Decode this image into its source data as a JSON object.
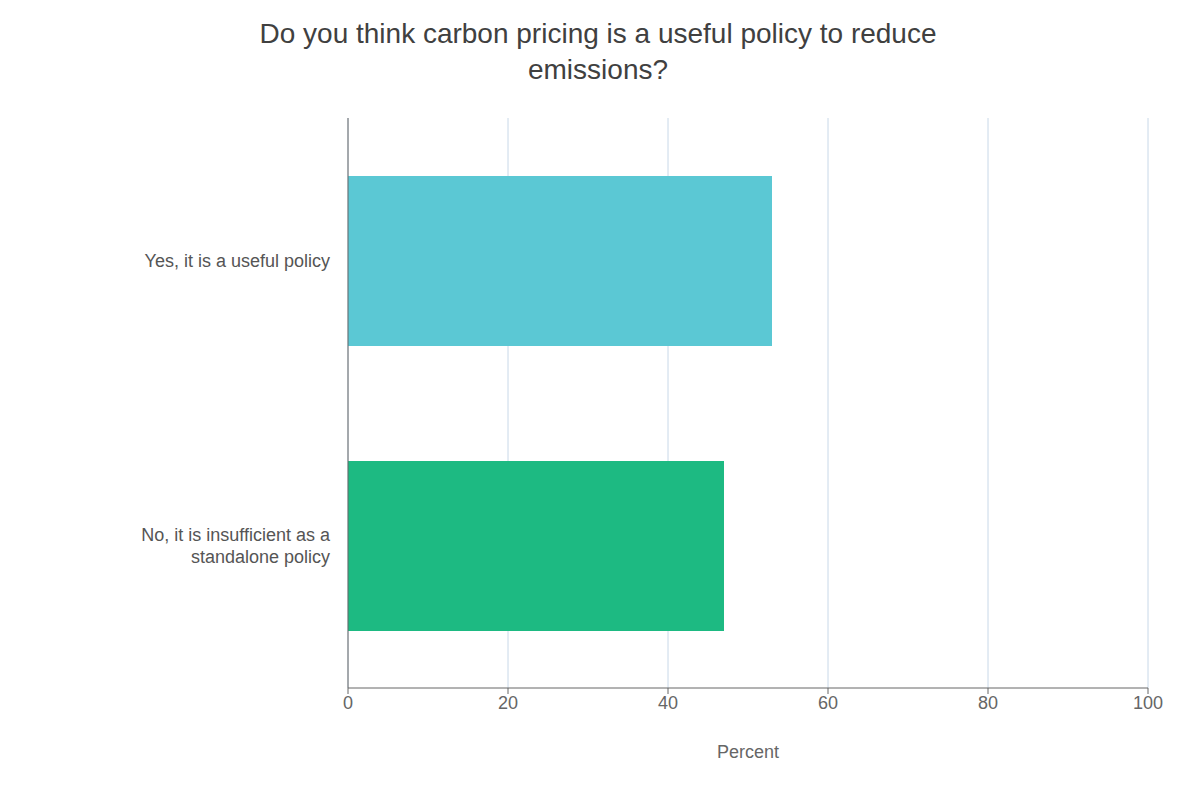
{
  "chart_data": {
    "type": "bar",
    "orientation": "horizontal",
    "title": "Do you think carbon pricing is a useful policy to reduce\nemissions?",
    "categories": [
      "Yes, it is a useful policy",
      "No, it is insufficient as a\nstandalone policy"
    ],
    "values": [
      53,
      47
    ],
    "colors": [
      "#5bc8d4",
      "#1dba82"
    ],
    "xlabel": "Percent",
    "xlim": [
      0,
      100
    ],
    "xticks": [
      0,
      20,
      40,
      60,
      80,
      100
    ],
    "grid": true
  }
}
